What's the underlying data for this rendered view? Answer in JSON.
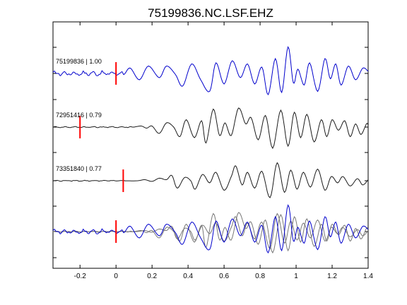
{
  "chart_data": {
    "type": "line",
    "title": "75199836.NC.LSF.EHZ",
    "xlabel": "",
    "ylabel": "",
    "xlim": [
      -0.35,
      1.4
    ],
    "xticks": [
      -0.2,
      0,
      0.2,
      0.4,
      0.6,
      0.8,
      1,
      1.2,
      1.4
    ],
    "xtick_labels": [
      "-0.2",
      "0",
      "0.2",
      "0.4",
      "0.6",
      "0.8",
      "1",
      "1.2",
      "1.4"
    ],
    "grid": false,
    "series": [
      {
        "name": "75199836 | 1.00",
        "color": "#0000cc",
        "pick_time": 0.0,
        "noise": [
          -0.35,
          0.05,
          0.12
        ],
        "points": [
          [
            0.05,
            0
          ],
          [
            0.08,
            0.25
          ],
          [
            0.13,
            -0.3
          ],
          [
            0.18,
            0.35
          ],
          [
            0.24,
            -0.2
          ],
          [
            0.28,
            0.35
          ],
          [
            0.33,
            -0.05
          ],
          [
            0.37,
            -0.6
          ],
          [
            0.42,
            0.45
          ],
          [
            0.47,
            -0.3
          ],
          [
            0.52,
            -0.85
          ],
          [
            0.555,
            0.5
          ],
          [
            0.6,
            -0.5
          ],
          [
            0.645,
            0.6
          ],
          [
            0.69,
            -0.2
          ],
          [
            0.73,
            0.45
          ],
          [
            0.77,
            -0.5
          ],
          [
            0.81,
            0.3
          ],
          [
            0.845,
            -1.0
          ],
          [
            0.885,
            0.7
          ],
          [
            0.92,
            -0.9
          ],
          [
            0.955,
            1.25
          ],
          [
            0.985,
            -0.45
          ],
          [
            1.01,
            0.2
          ],
          [
            1.045,
            -0.55
          ],
          [
            1.075,
            0.5
          ],
          [
            1.12,
            -0.85
          ],
          [
            1.16,
            0.7
          ],
          [
            1.19,
            -0.25
          ],
          [
            1.22,
            0.45
          ],
          [
            1.25,
            -0.55
          ],
          [
            1.29,
            0.35
          ],
          [
            1.33,
            -0.3
          ],
          [
            1.37,
            0.25
          ],
          [
            1.4,
            0.1
          ]
        ]
      },
      {
        "name": "72951416 | 0.79",
        "color": "#1a1a1a",
        "pick_time": -0.2,
        "noise": [
          -0.35,
          0.1,
          0.03
        ],
        "points": [
          [
            0.1,
            0
          ],
          [
            0.14,
            0.05
          ],
          [
            0.17,
            -0.05
          ],
          [
            0.2,
            0.05
          ],
          [
            0.24,
            -0.3
          ],
          [
            0.28,
            0.2
          ],
          [
            0.32,
            0
          ],
          [
            0.355,
            -0.45
          ],
          [
            0.39,
            0.35
          ],
          [
            0.435,
            -0.5
          ],
          [
            0.475,
            0.3
          ],
          [
            0.5,
            -0.75
          ],
          [
            0.54,
            0.85
          ],
          [
            0.575,
            -0.4
          ],
          [
            0.605,
            0.2
          ],
          [
            0.64,
            -0.4
          ],
          [
            0.68,
            0.9
          ],
          [
            0.72,
            0.15
          ],
          [
            0.75,
            0.45
          ],
          [
            0.79,
            -0.6
          ],
          [
            0.83,
            0.55
          ],
          [
            0.87,
            -1.0
          ],
          [
            0.915,
            0.8
          ],
          [
            0.955,
            -0.9
          ],
          [
            0.99,
            0.7
          ],
          [
            1.025,
            -0.5
          ],
          [
            1.06,
            0.6
          ],
          [
            1.1,
            -0.7
          ],
          [
            1.14,
            0.35
          ],
          [
            1.17,
            -0.45
          ],
          [
            1.2,
            0.35
          ],
          [
            1.235,
            -0.15
          ],
          [
            1.27,
            0.3
          ],
          [
            1.3,
            -0.45
          ],
          [
            1.33,
            0.15
          ],
          [
            1.36,
            -0.35
          ],
          [
            1.39,
            0.15
          ],
          [
            1.4,
            0.1
          ]
        ]
      },
      {
        "name": "73351840 | 0.77",
        "color": "#1a1a1a",
        "pick_time": 0.04,
        "noise": [
          -0.35,
          0.06,
          0.025
        ],
        "points": [
          [
            0.12,
            0
          ],
          [
            0.16,
            0.05
          ],
          [
            0.2,
            -0.03
          ],
          [
            0.24,
            0.12
          ],
          [
            0.28,
            0.05
          ],
          [
            0.31,
            0.25
          ],
          [
            0.34,
            -0.35
          ],
          [
            0.38,
            0.15
          ],
          [
            0.415,
            0
          ],
          [
            0.44,
            -0.4
          ],
          [
            0.48,
            0.3
          ],
          [
            0.52,
            -0.1
          ],
          [
            0.555,
            0.4
          ],
          [
            0.6,
            -0.45
          ],
          [
            0.64,
            0.2
          ],
          [
            0.665,
            0.7
          ],
          [
            0.7,
            -0.2
          ],
          [
            0.73,
            0.4
          ],
          [
            0.77,
            -0.35
          ],
          [
            0.81,
            0.45
          ],
          [
            0.855,
            -0.8
          ],
          [
            0.895,
            0.85
          ],
          [
            0.935,
            -0.55
          ],
          [
            0.97,
            0.5
          ],
          [
            1.005,
            -0.4
          ],
          [
            1.04,
            0.4
          ],
          [
            1.08,
            -0.3
          ],
          [
            1.12,
            0.55
          ],
          [
            1.16,
            -0.45
          ],
          [
            1.195,
            0.2
          ],
          [
            1.23,
            -0.1
          ],
          [
            1.26,
            0.2
          ],
          [
            1.3,
            -0.25
          ],
          [
            1.34,
            0.1
          ],
          [
            1.37,
            -0.2
          ],
          [
            1.4,
            0.05
          ]
        ]
      }
    ]
  }
}
